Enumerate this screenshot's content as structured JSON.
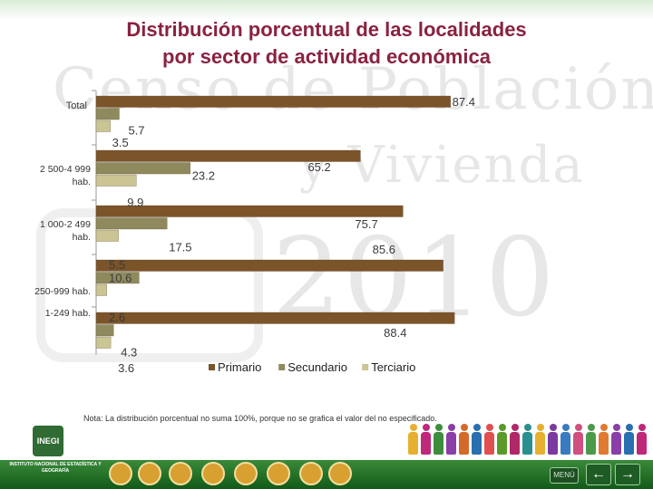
{
  "title_lines": [
    "Distribución porcentual de las localidades",
    "por sector de actividad económica"
  ],
  "watermark": {
    "line1": "Censo de Población",
    "line2": "y Vivienda",
    "year": "2010"
  },
  "note": "Nota: La distribución porcentual no suma 100%, porque no se grafica el valor del no especificado.",
  "footer": {
    "logo_text": "INEGI",
    "institute_text": "INSTITUTO NACIONAL DE ESTADÍSTICA Y GEOGRAFÍA",
    "menu_label": "MENÚ",
    "prev_label": "←",
    "next_label": "→"
  },
  "chart_data": {
    "type": "bar",
    "orientation": "horizontal",
    "categories": [
      "Total",
      "2 500-4 999 hab.",
      "1 000-2 499 hab.",
      "250-999 hab.",
      "1-249 hab."
    ],
    "series": [
      {
        "name": "Primario",
        "color": "#7b5429",
        "values": [
          87.4,
          65.2,
          75.7,
          85.6,
          88.4
        ]
      },
      {
        "name": "Secundario",
        "color": "#8f8a5d",
        "values": [
          5.7,
          23.2,
          17.5,
          10.6,
          4.3
        ]
      },
      {
        "name": "Terciario",
        "color": "#cbc594",
        "values": [
          3.5,
          9.9,
          5.5,
          2.6,
          3.6
        ]
      }
    ],
    "data_labels": [
      [
        "87.4",
        "5.7",
        "3.5"
      ],
      [
        "65.2",
        "23.2",
        "9.9"
      ],
      [
        "75.7",
        "17.5",
        "5.5"
      ],
      [
        "85.6",
        "10.6",
        "2.6"
      ],
      [
        "88.4",
        "4.3",
        "3.6"
      ]
    ],
    "xlim": [
      0,
      100
    ],
    "legend_position": "bottom"
  }
}
